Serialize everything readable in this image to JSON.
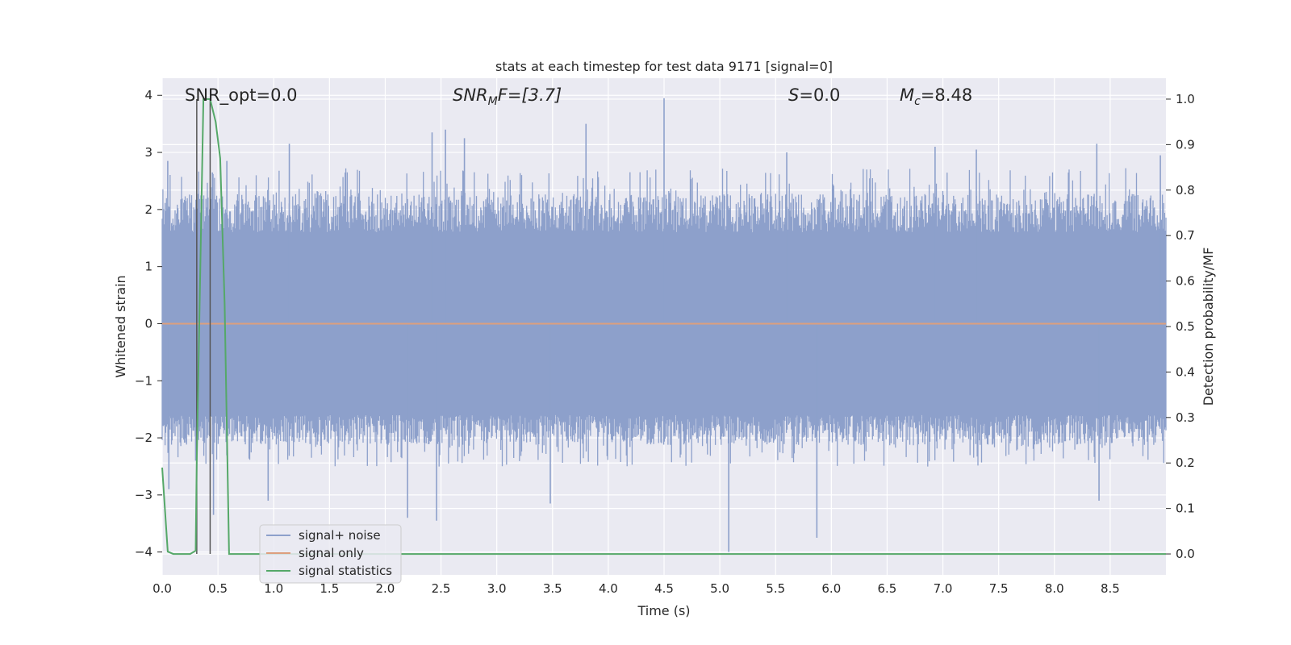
{
  "chart_data": {
    "type": "line",
    "title": "stats at each timestep for test data 9171 [signal=0]",
    "xlabel": "Time (s)",
    "ylabel": "Whitened strain",
    "y2label": "Detection probability/MF",
    "xlim": [
      0.0,
      9.0
    ],
    "ylim": [
      -4.4,
      4.3
    ],
    "y2lim": [
      -0.046,
      1.046
    ],
    "xticks": [
      "0.0",
      "0.5",
      "1.0",
      "1.5",
      "2.0",
      "2.5",
      "3.0",
      "3.5",
      "4.0",
      "4.5",
      "5.0",
      "5.5",
      "6.0",
      "6.5",
      "7.0",
      "7.5",
      "8.0",
      "8.5"
    ],
    "yticks": [
      "4",
      "3",
      "2",
      "1",
      "0",
      "−1",
      "−2",
      "−3",
      "−4"
    ],
    "y2ticks": [
      "1.0",
      "0.9",
      "0.8",
      "0.7",
      "0.6",
      "0.5",
      "0.4",
      "0.3",
      "0.2",
      "0.1",
      "0.0"
    ],
    "annotations": {
      "snr_opt": "SNR_opt=0.0",
      "snr_mf_base": "SNR",
      "snr_mf_sub": "M",
      "snr_mf_rest": "F=[3.7]",
      "s_italic": "S",
      "s_rest": "=0.0",
      "mc_italic": "M",
      "mc_sub": "c",
      "mc_rest": "=8.48"
    },
    "vertical_markers_s": [
      0.31,
      0.43
    ],
    "grid": true,
    "legend_placement": "lower-left",
    "series": [
      {
        "name": "signal+ noise",
        "color": "#8da0cb",
        "envelope": {
          "typical_low": -1.7,
          "typical_high": 2.0
        },
        "spikes": [
          {
            "x": 0.05,
            "y": 2.85
          },
          {
            "x": 0.06,
            "y": -2.9
          },
          {
            "x": 0.3,
            "y": -2.4
          },
          {
            "x": 0.45,
            "y": 2.65
          },
          {
            "x": 0.46,
            "y": -3.35
          },
          {
            "x": 0.58,
            "y": 2.85
          },
          {
            "x": 0.95,
            "y": -3.1
          },
          {
            "x": 1.14,
            "y": 3.15
          },
          {
            "x": 2.2,
            "y": -3.4
          },
          {
            "x": 2.42,
            "y": 3.35
          },
          {
            "x": 2.46,
            "y": -3.45
          },
          {
            "x": 2.54,
            "y": 3.4
          },
          {
            "x": 2.71,
            "y": 3.25
          },
          {
            "x": 3.48,
            "y": -3.15
          },
          {
            "x": 3.8,
            "y": 3.5
          },
          {
            "x": 4.5,
            "y": 3.95
          },
          {
            "x": 5.08,
            "y": -4.0
          },
          {
            "x": 5.6,
            "y": 3.0
          },
          {
            "x": 5.87,
            "y": -3.75
          },
          {
            "x": 6.93,
            "y": 3.1
          },
          {
            "x": 7.3,
            "y": 3.05
          },
          {
            "x": 8.38,
            "y": 3.15
          },
          {
            "x": 8.4,
            "y": -3.1
          },
          {
            "x": 8.95,
            "y": 2.95
          }
        ]
      },
      {
        "name": "signal only",
        "color": "#dd9f7e",
        "constant_value": 0.0
      },
      {
        "name": "signal statistics",
        "color": "#55a868",
        "axis": "right",
        "x": [
          0.0,
          0.05,
          0.1,
          0.15,
          0.2,
          0.25,
          0.3,
          0.31,
          0.37,
          0.43,
          0.48,
          0.52,
          0.56,
          0.6,
          0.7,
          1.0,
          2.0,
          4.0,
          6.0,
          8.0,
          9.0
        ],
        "y": [
          0.19,
          0.005,
          0.0,
          0.0,
          0.0,
          0.0,
          0.007,
          0.2,
          1.0,
          1.0,
          0.95,
          0.87,
          0.55,
          0.0,
          0.0,
          0.0,
          0.0,
          0.0,
          0.0,
          0.0,
          0.0
        ]
      }
    ]
  }
}
